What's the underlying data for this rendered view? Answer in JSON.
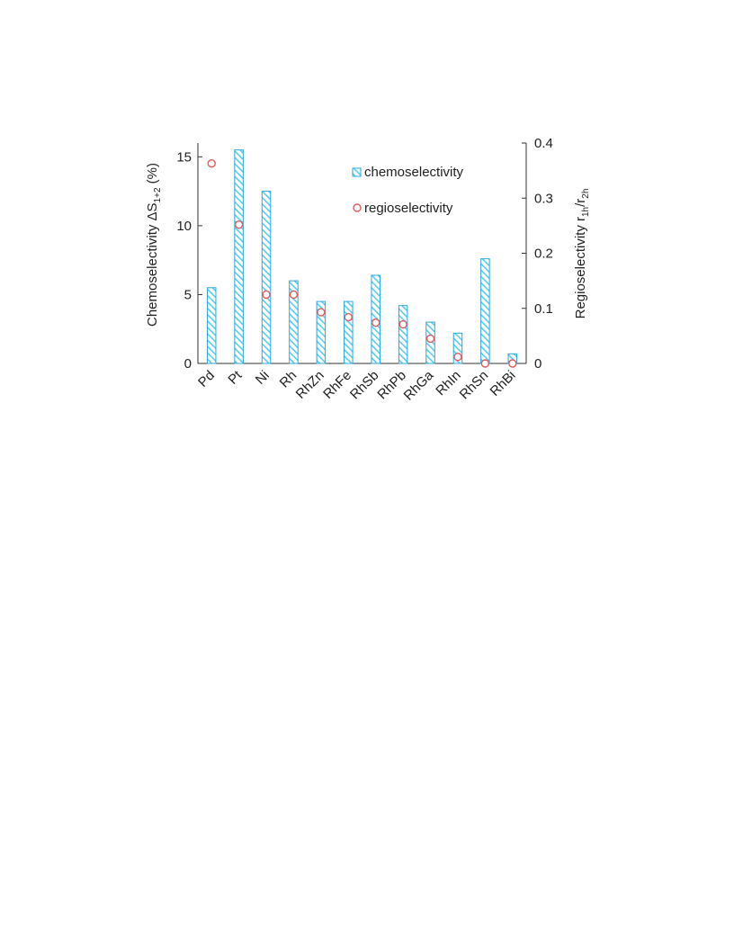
{
  "colors": {
    "bar_stroke": "#2ba8dc",
    "bar_hatch": "#5ccbf1",
    "marker": "#e05a5a",
    "axis": "#333333"
  },
  "chart_data": {
    "type": "bar",
    "categories": [
      "Pd",
      "Pt",
      "Ni",
      "Rh",
      "RhZn",
      "RhFe",
      "RhSb",
      "RhPb",
      "RhGa",
      "RhIn",
      "RhSn",
      "RhBi"
    ],
    "series": [
      {
        "name": "chemoselectivity",
        "type": "bar",
        "axis": "left",
        "values": [
          5.5,
          15.5,
          12.5,
          6.0,
          4.5,
          4.5,
          6.4,
          4.2,
          3.0,
          2.2,
          7.6,
          0.7
        ]
      },
      {
        "name": "regioselectivity",
        "type": "scatter",
        "marker": "open-circle",
        "axis": "right",
        "values": [
          0.363,
          0.252,
          0.125,
          0.125,
          0.093,
          0.084,
          0.074,
          0.071,
          0.045,
          0.012,
          0.0,
          0.0
        ]
      }
    ],
    "y_left": {
      "label_main": "Chemoselectivity ΔS",
      "label_sub": "1+2",
      "label_tail": " (%)",
      "ylim": [
        0,
        16
      ],
      "ticks": [
        0,
        5,
        10,
        15
      ],
      "tick_labels": [
        "0",
        "5",
        "10",
        "15"
      ]
    },
    "y_right": {
      "label_main": "Regioselectivity r",
      "label_sub1": "1h",
      "label_mid": "/r",
      "label_sub2": "2h",
      "ylim": [
        0,
        0.4
      ],
      "ticks": [
        0,
        0.1,
        0.2,
        0.3,
        0.4
      ],
      "tick_labels": [
        "0",
        "0.1",
        "0.2",
        "0.3",
        "0.4"
      ]
    },
    "legend": {
      "placement": "top-right",
      "entries": [
        "chemoselectivity",
        "regioselectivity"
      ]
    },
    "grid": false
  }
}
